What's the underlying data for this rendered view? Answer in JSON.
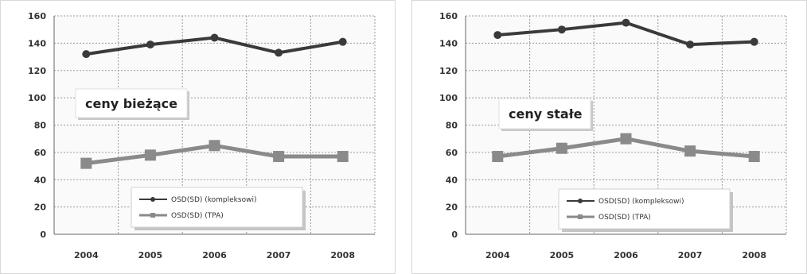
{
  "chart_data": [
    {
      "type": "line",
      "annotation": "ceny bieżące",
      "categories": [
        "2004",
        "2005",
        "2006",
        "2007",
        "2008"
      ],
      "ylim": [
        0,
        160
      ],
      "yticks": [
        "0",
        "20",
        "40",
        "60",
        "80",
        "100",
        "120",
        "140",
        "160"
      ],
      "grid": true,
      "legend_position": "bottom-center",
      "series": [
        {
          "name": "OSD(SD) (kompleksowi)",
          "values": [
            132,
            139,
            144,
            133,
            141
          ],
          "color": "#3a3a3a"
        },
        {
          "name": "OSD(SD) (TPA)",
          "values": [
            52,
            58,
            65,
            57,
            57
          ],
          "color": "#8a8a8a"
        }
      ]
    },
    {
      "type": "line",
      "annotation": "ceny stałe",
      "categories": [
        "2004",
        "2005",
        "2006",
        "2007",
        "2008"
      ],
      "ylim": [
        0,
        160
      ],
      "yticks": [
        "0",
        "20",
        "40",
        "60",
        "80",
        "100",
        "120",
        "140",
        "160"
      ],
      "grid": true,
      "legend_position": "bottom-center",
      "series": [
        {
          "name": "OSD(SD) (kompleksowi)",
          "values": [
            146,
            150,
            155,
            139,
            141
          ],
          "color": "#3a3a3a"
        },
        {
          "name": "OSD(SD) (TPA)",
          "values": [
            57,
            63,
            70,
            61,
            57
          ],
          "color": "#8a8a8a"
        }
      ]
    }
  ]
}
